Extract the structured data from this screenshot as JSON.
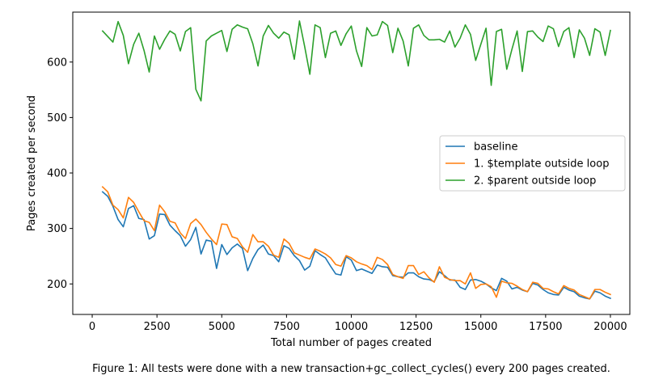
{
  "chart_data": {
    "type": "line",
    "xlabel": "Total number of pages created",
    "ylabel": "Pages created per second",
    "xlim": [
      -750,
      20750
    ],
    "ylim": [
      145,
      690
    ],
    "xticks": [
      0,
      2500,
      5000,
      7500,
      10000,
      12500,
      15000,
      17500,
      20000
    ],
    "yticks": [
      200,
      300,
      400,
      500,
      600
    ],
    "grid": false,
    "legend_position": "center-right",
    "series": [
      {
        "name": "baseline",
        "color": "#1f77b4",
        "y": [
          366,
          358,
          340,
          316,
          303,
          336,
          341,
          318,
          316,
          281,
          287,
          326,
          325,
          306,
          296,
          287,
          268,
          280,
          302,
          254,
          279,
          277,
          228,
          271,
          253,
          265,
          272,
          264,
          224,
          246,
          262,
          270,
          254,
          251,
          240,
          269,
          264,
          251,
          242,
          225,
          232,
          260,
          253,
          247,
          232,
          218,
          216,
          249,
          243,
          224,
          227,
          223,
          219,
          234,
          231,
          230,
          215,
          213,
          212,
          220,
          220,
          213,
          209,
          208,
          204,
          222,
          215,
          207,
          207,
          194,
          190,
          207,
          208,
          205,
          200,
          193,
          188,
          210,
          205,
          191,
          194,
          189,
          186,
          201,
          198,
          190,
          184,
          181,
          180,
          194,
          189,
          186,
          178,
          175,
          173,
          187,
          184,
          178,
          174
        ]
      },
      {
        "name": "1. $template outside loop",
        "color": "#ff7f0e",
        "y": [
          375,
          366,
          342,
          334,
          319,
          356,
          347,
          330,
          314,
          311,
          296,
          342,
          330,
          313,
          310,
          292,
          282,
          309,
          317,
          307,
          293,
          281,
          271,
          308,
          307,
          285,
          282,
          267,
          257,
          289,
          276,
          276,
          268,
          252,
          248,
          281,
          273,
          256,
          252,
          248,
          245,
          263,
          259,
          254,
          247,
          235,
          232,
          251,
          247,
          240,
          236,
          233,
          226,
          248,
          244,
          235,
          217,
          213,
          210,
          233,
          233,
          217,
          222,
          211,
          203,
          231,
          212,
          208,
          206,
          206,
          200,
          220,
          192,
          199,
          200,
          195,
          176,
          205,
          202,
          201,
          196,
          190,
          186,
          203,
          201,
          192,
          191,
          186,
          182,
          197,
          192,
          189,
          181,
          177,
          173,
          190,
          190,
          185,
          181
        ]
      },
      {
        "name": "2. $parent outside loop",
        "color": "#2ca02c",
        "y": [
          656,
          646,
          636,
          673,
          648,
          597,
          632,
          652,
          621,
          582,
          647,
          623,
          641,
          656,
          650,
          620,
          655,
          662,
          551,
          530,
          638,
          647,
          652,
          657,
          619,
          659,
          667,
          663,
          660,
          633,
          593,
          647,
          666,
          652,
          643,
          654,
          649,
          605,
          674,
          628,
          578,
          667,
          662,
          608,
          652,
          656,
          630,
          651,
          665,
          620,
          592,
          662,
          647,
          649,
          673,
          666,
          617,
          661,
          638,
          593,
          661,
          667,
          648,
          640,
          640,
          641,
          636,
          656,
          627,
          643,
          667,
          650,
          603,
          632,
          661,
          558,
          655,
          659,
          587,
          623,
          656,
          583,
          655,
          656,
          645,
          637,
          665,
          660,
          628,
          655,
          662,
          608,
          658,
          643,
          612,
          660,
          654,
          612,
          657
        ]
      }
    ]
  },
  "caption": "Figure 1: All tests were done with a new transaction+gc_collect_cycles() every 200 pages created."
}
